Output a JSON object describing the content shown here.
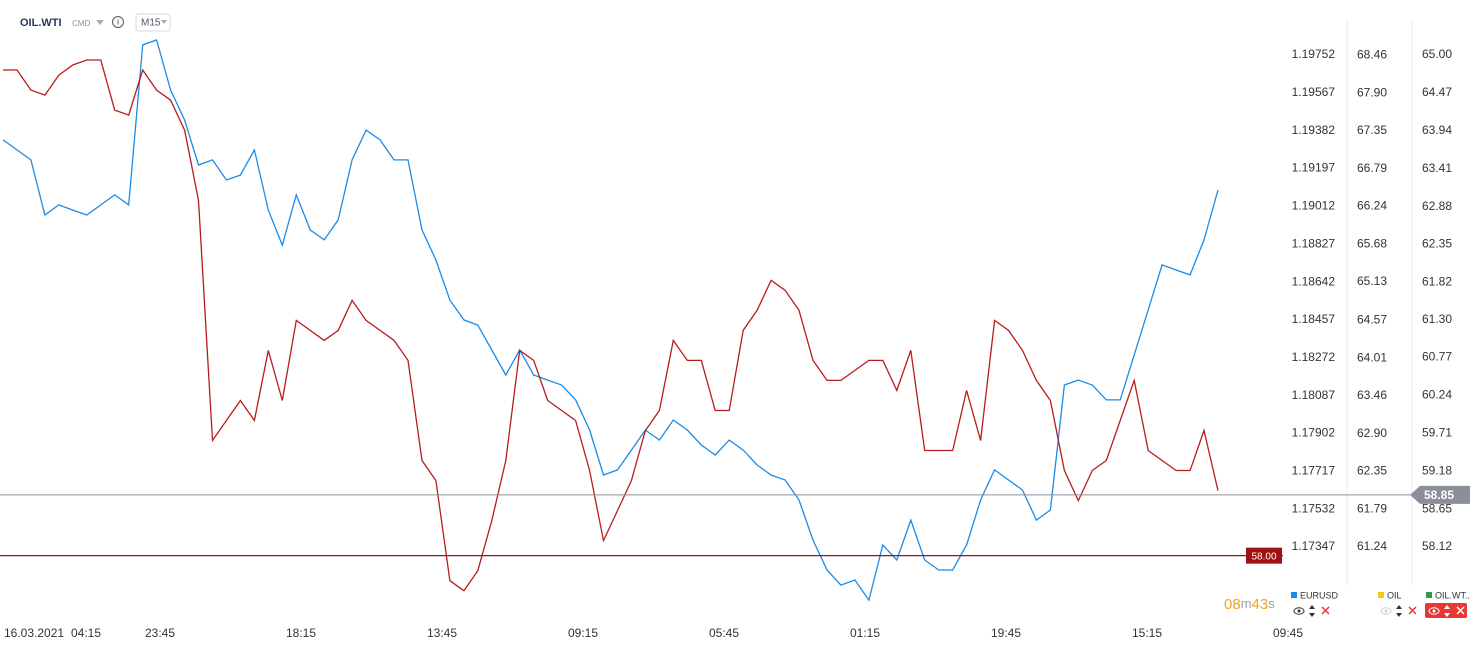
{
  "header": {
    "symbol": "OIL.WTI",
    "market": "CMD",
    "interval": "M15"
  },
  "chart_data": {
    "type": "line",
    "date": "16.03.2021",
    "x_labels": [
      "04:15",
      "23:45",
      "18:15",
      "13:45",
      "09:15",
      "05:45",
      "01:15",
      "19:45",
      "15:15",
      "09:45"
    ],
    "ylim": [
      1.17015,
      1.19874
    ],
    "yticks": [
      1.19752,
      1.19567,
      1.19382,
      1.19197,
      1.19012,
      1.18827,
      1.18642,
      1.18457,
      1.18272,
      1.18087,
      1.17902,
      1.17717,
      1.17532,
      1.17347
    ],
    "y3lim": [
      60.24,
      68.83
    ],
    "y3ticks": [
      68.46,
      {
        "value": 67.9,
        "label": "67.90"
      },
      67.35,
      66.79,
      66.24,
      65.68,
      65.13,
      64.57,
      64.01,
      63.46,
      {
        "value": 62.9,
        "label": "62.90"
      },
      62.35,
      61.79,
      61.24
    ],
    "y2lim": [
      57.17,
      65.35
    ],
    "y2ticks": [
      {
        "value": 65,
        "label": "65.00"
      },
      64.47,
      63.94,
      63.41,
      62.88,
      62.35,
      61.82,
      {
        "value": 61.3,
        "label": "61.30"
      },
      60.77,
      60.24,
      59.71,
      59.18,
      58.65,
      58.12
    ],
    "last_price": 58.85,
    "alert_level": {
      "value": 58,
      "label": "58.00"
    },
    "countdown": [
      "08",
      "m",
      "43",
      "s"
    ],
    "series": [
      {
        "name": "EURUSD",
        "color": "#1a8ce8",
        "axis": "y",
        "values": [
          1.19337,
          1.19288,
          1.19239,
          1.1897,
          1.19019,
          1.18994,
          1.1897,
          1.19019,
          1.19068,
          1.19019,
          1.19801,
          1.19825,
          1.19581,
          1.19434,
          1.19214,
          1.19239,
          1.19141,
          1.19165,
          1.19288,
          1.18994,
          1.18823,
          1.19068,
          1.18897,
          1.18848,
          1.18946,
          1.19239,
          1.19385,
          1.19337,
          1.19239,
          1.19239,
          1.18897,
          1.1875,
          1.18554,
          1.18457,
          1.18432,
          1.1831,
          1.18188,
          1.1831,
          1.18188,
          1.18163,
          1.18139,
          1.18066,
          1.17919,
          1.17699,
          1.17724,
          1.17821,
          1.17919,
          1.1787,
          1.17968,
          1.17919,
          1.17846,
          1.17797,
          1.1787,
          1.17821,
          1.17748,
          1.17699,
          1.17675,
          1.17577,
          1.17381,
          1.17235,
          1.17161,
          1.17186,
          1.17088,
          1.17357,
          1.17284,
          1.17479,
          1.17284,
          1.17235,
          1.17235,
          1.17357,
          1.17577,
          1.17724,
          1.17675,
          1.17626,
          1.17479,
          1.17528,
          1.18139,
          1.18163,
          1.18139,
          1.18066,
          1.18066,
          1.18286,
          1.18506,
          1.18726,
          1.18701,
          1.18677,
          1.18848,
          1.19092
        ]
      },
      {
        "name": "OIL",
        "color": "#f5c518",
        "axis": "y3",
        "hidden": true
      },
      {
        "name": "OIL.WT..",
        "color": "#b71c1c",
        "legend_color": "#2e9b45",
        "axis": "y2",
        "values": [
          64.79,
          64.79,
          64.51,
          64.44,
          64.72,
          64.86,
          64.93,
          64.93,
          64.23,
          64.16,
          64.79,
          64.51,
          64.37,
          63.95,
          62.97,
          59.61,
          59.89,
          60.17,
          59.89,
          60.87,
          60.17,
          61.29,
          61.15,
          61.01,
          61.15,
          61.57,
          61.29,
          61.15,
          61.01,
          60.73,
          59.33,
          59.05,
          57.65,
          57.51,
          57.79,
          58.49,
          59.33,
          60.87,
          60.73,
          60.17,
          60.03,
          59.89,
          59.19,
          58.21,
          58.63,
          59.05,
          59.75,
          60.03,
          61.01,
          60.73,
          60.73,
          60.03,
          60.03,
          61.15,
          61.43,
          61.85,
          61.71,
          61.43,
          60.73,
          60.45,
          60.45,
          60.59,
          60.73,
          60.73,
          60.31,
          60.87,
          59.47,
          59.47,
          59.47,
          60.31,
          59.61,
          61.29,
          61.15,
          60.87,
          60.45,
          60.17,
          59.19,
          58.77,
          59.19,
          59.33,
          59.89,
          60.45,
          59.47,
          59.33,
          59.19,
          59.19,
          59.75,
          58.91
        ]
      }
    ]
  }
}
